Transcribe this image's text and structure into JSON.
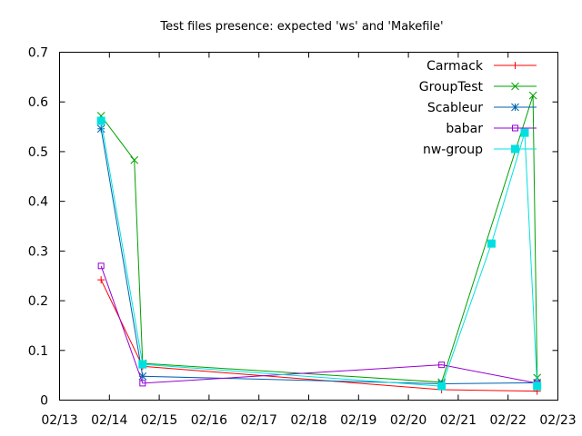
{
  "chart_data": {
    "type": "line",
    "title": "Test files presence: expected 'ws' and 'Makefile'",
    "x_axis": {
      "type": "date",
      "min": "2000-02-13",
      "max": "2000-02-23",
      "tick_labels": [
        "02/13",
        "02/14",
        "02/15",
        "02/16",
        "02/17",
        "02/18",
        "02/19",
        "02/20",
        "02/21",
        "02/22",
        "02/23"
      ]
    },
    "y_axis": {
      "min": 0,
      "max": 0.7,
      "tick_labels": [
        "0",
        "0.1",
        "0.2",
        "0.3",
        "0.4",
        "0.5",
        "0.6",
        "0.7"
      ]
    },
    "grid": false,
    "legend_position": "top-right",
    "series": [
      {
        "name": "Carmack",
        "color": "#ff0000",
        "marker": "plus",
        "x": [
          "2000-02-13T20:00",
          "2000-02-14T16:00",
          "2000-02-20T16:00",
          "2000-02-22T14:00"
        ],
        "y": [
          0.242,
          0.068,
          0.021,
          0.018
        ]
      },
      {
        "name": "GroupTest",
        "color": "#00a000",
        "marker": "cross",
        "x": [
          "2000-02-13T20:00",
          "2000-02-14T12:00",
          "2000-02-14T16:00",
          "2000-02-20T16:00",
          "2000-02-22T12:00",
          "2000-02-22T14:00"
        ],
        "y": [
          0.572,
          0.483,
          0.074,
          0.036,
          0.613,
          0.045
        ]
      },
      {
        "name": "Scableur",
        "color": "#0060ad",
        "marker": "asterisk",
        "x": [
          "2000-02-13T20:00",
          "2000-02-14T16:00",
          "2000-02-20T16:00",
          "2000-02-22T14:00"
        ],
        "y": [
          0.546,
          0.048,
          0.033,
          0.035
        ]
      },
      {
        "name": "babar",
        "color": "#9400d3",
        "marker": "open-square",
        "x": [
          "2000-02-13T20:00",
          "2000-02-14T16:00",
          "2000-02-20T16:00",
          "2000-02-22T14:00"
        ],
        "y": [
          0.27,
          0.034,
          0.071,
          0.034
        ]
      },
      {
        "name": "nw-group",
        "color": "#00e0e0",
        "marker": "filled-square",
        "x": [
          "2000-02-13T20:00",
          "2000-02-14T16:00",
          "2000-02-20T16:00",
          "2000-02-21T16:00",
          "2000-02-22T08:00",
          "2000-02-22T14:00"
        ],
        "y": [
          0.562,
          0.072,
          0.028,
          0.315,
          0.538,
          0.028
        ]
      }
    ]
  }
}
